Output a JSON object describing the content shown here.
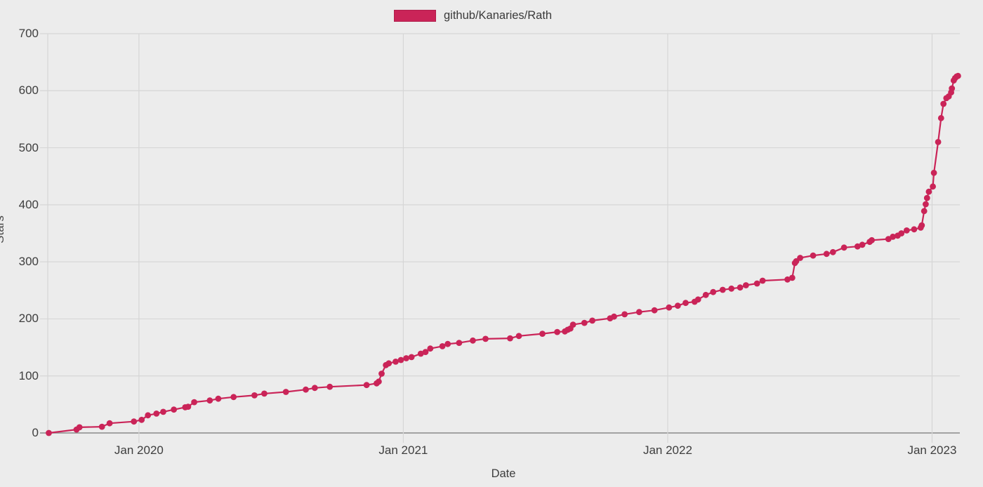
{
  "page": {
    "background": "#ececec"
  },
  "legend": {
    "items": [
      {
        "label": "github/Kanaries/Rath",
        "swatch_color": "#ca2458"
      }
    ]
  },
  "chart_data": {
    "type": "line",
    "title": "",
    "xlabel": "Date",
    "ylabel": "Stars",
    "grid": true,
    "legend_position": "top-center",
    "xlim": [
      2019.655,
      2023.105
    ],
    "ylim": [
      0,
      700
    ],
    "y_ticks": [
      0,
      100,
      200,
      300,
      400,
      500,
      600,
      700
    ],
    "x_ticks": [
      {
        "value": 2020,
        "label": "Jan 2020"
      },
      {
        "value": 2021,
        "label": "Jan 2021"
      },
      {
        "value": 2022,
        "label": "Jan 2022"
      },
      {
        "value": 2023,
        "label": "Jan 2023"
      }
    ],
    "colors": {
      "series": "#ca2458",
      "grid": "#d6d6d6",
      "zero_axis": "#8a8a8a",
      "tick_text": "#3e3e3e"
    },
    "series": [
      {
        "name": "github/Kanaries/Rath",
        "color": "#ca2458",
        "marker": "circle",
        "points": [
          [
            2019.659,
            0
          ],
          [
            2019.764,
            6
          ],
          [
            2019.775,
            10
          ],
          [
            2019.86,
            11
          ],
          [
            2019.889,
            17
          ],
          [
            2019.981,
            20
          ],
          [
            2020.01,
            23
          ],
          [
            2020.034,
            31
          ],
          [
            2020.066,
            34
          ],
          [
            2020.092,
            37
          ],
          [
            2020.132,
            41
          ],
          [
            2020.175,
            45
          ],
          [
            2020.186,
            46
          ],
          [
            2020.209,
            54
          ],
          [
            2020.268,
            57
          ],
          [
            2020.3,
            60
          ],
          [
            2020.358,
            63
          ],
          [
            2020.437,
            66
          ],
          [
            2020.474,
            69
          ],
          [
            2020.556,
            72
          ],
          [
            2020.631,
            76
          ],
          [
            2020.665,
            79
          ],
          [
            2020.722,
            81
          ],
          [
            2020.861,
            84
          ],
          [
            2020.899,
            87
          ],
          [
            2020.907,
            90
          ],
          [
            2020.918,
            104
          ],
          [
            2020.934,
            119
          ],
          [
            2020.945,
            122
          ],
          [
            2020.971,
            125
          ],
          [
            2020.991,
            128
          ],
          [
            2021.011,
            131
          ],
          [
            2021.031,
            133
          ],
          [
            2021.066,
            139
          ],
          [
            2021.084,
            142
          ],
          [
            2021.102,
            148
          ],
          [
            2021.148,
            152
          ],
          [
            2021.168,
            156
          ],
          [
            2021.211,
            158
          ],
          [
            2021.263,
            162
          ],
          [
            2021.311,
            165
          ],
          [
            2021.404,
            166
          ],
          [
            2021.437,
            170
          ],
          [
            2021.526,
            174
          ],
          [
            2021.582,
            177
          ],
          [
            2021.611,
            178
          ],
          [
            2021.622,
            181
          ],
          [
            2021.632,
            183
          ],
          [
            2021.642,
            190
          ],
          [
            2021.685,
            193
          ],
          [
            2021.715,
            197
          ],
          [
            2021.782,
            201
          ],
          [
            2021.797,
            204
          ],
          [
            2021.837,
            208
          ],
          [
            2021.892,
            212
          ],
          [
            2021.95,
            215
          ],
          [
            2022.005,
            220
          ],
          [
            2022.038,
            223
          ],
          [
            2022.068,
            228
          ],
          [
            2022.102,
            230
          ],
          [
            2022.115,
            234
          ],
          [
            2022.144,
            242
          ],
          [
            2022.172,
            247
          ],
          [
            2022.208,
            251
          ],
          [
            2022.241,
            253
          ],
          [
            2022.274,
            255
          ],
          [
            2022.296,
            259
          ],
          [
            2022.338,
            262
          ],
          [
            2022.359,
            267
          ],
          [
            2022.453,
            269
          ],
          [
            2022.471,
            272
          ],
          [
            2022.481,
            298
          ],
          [
            2022.486,
            301
          ],
          [
            2022.501,
            307
          ],
          [
            2022.55,
            311
          ],
          [
            2022.601,
            314
          ],
          [
            2022.625,
            317
          ],
          [
            2022.667,
            325
          ],
          [
            2022.718,
            327
          ],
          [
            2022.736,
            330
          ],
          [
            2022.764,
            335
          ],
          [
            2022.772,
            338
          ],
          [
            2022.835,
            340
          ],
          [
            2022.852,
            344
          ],
          [
            2022.87,
            346
          ],
          [
            2022.884,
            350
          ],
          [
            2022.904,
            355
          ],
          [
            2022.932,
            357
          ],
          [
            2022.957,
            360
          ],
          [
            2022.961,
            364
          ],
          [
            2022.97,
            389
          ],
          [
            2022.976,
            401
          ],
          [
            2022.981,
            412
          ],
          [
            2022.988,
            423
          ],
          [
            2023.003,
            432
          ],
          [
            2023.007,
            456
          ],
          [
            2023.023,
            510
          ],
          [
            2023.034,
            552
          ],
          [
            2023.043,
            577
          ],
          [
            2023.054,
            587
          ],
          [
            2023.063,
            590
          ],
          [
            2023.072,
            597
          ],
          [
            2023.075,
            604
          ],
          [
            2023.082,
            618
          ],
          [
            2023.087,
            622
          ],
          [
            2023.093,
            625
          ],
          [
            2023.098,
            626
          ]
        ]
      }
    ]
  }
}
